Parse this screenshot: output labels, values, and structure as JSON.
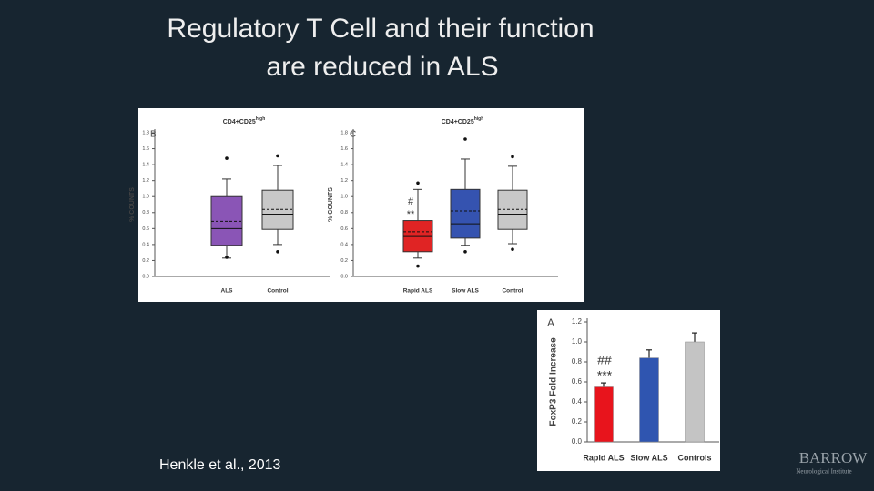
{
  "slide": {
    "title_line1": "Regulatory T Cell and their function",
    "title_line2": "are reduced in ALS",
    "citation": "Henkle et al., 2013",
    "logo": "BARROW",
    "logo_sub": "Neurological Institute"
  },
  "chart_data": [
    {
      "type": "box",
      "panel": "B",
      "title": "CD4+CD25",
      "title_sup": "high",
      "y_label": "% COUNTS",
      "ylim": [
        0,
        1.8
      ],
      "yticks": [
        {
          "value": 0,
          "label": "0.0"
        },
        0.2,
        0.4,
        0.6,
        0.8,
        {
          "value": 1,
          "label": "1.0"
        },
        1.2,
        1.4,
        1.6,
        1.8
      ],
      "categories": [
        "ALS",
        "Control"
      ],
      "boxes": [
        {
          "color": "#8a55b6",
          "low": 0.23,
          "q1": 0.39,
          "median": 0.6,
          "q3": 1.0,
          "high": 1.22,
          "mean": 0.69,
          "outliers": [
            1.48,
            0.24
          ]
        },
        {
          "color": "#c8c8c8",
          "low": 0.4,
          "q1": 0.59,
          "median": 0.78,
          "q3": 1.08,
          "high": 1.39,
          "mean": 0.84,
          "outliers": [
            1.51,
            0.31
          ]
        }
      ]
    },
    {
      "type": "box",
      "panel": "C",
      "title": "CD4+CD25",
      "title_sup": "high",
      "y_label": "% COUNTS",
      "ylim": [
        0,
        1.8
      ],
      "yticks": [
        {
          "value": 0,
          "label": "0.0"
        },
        0.2,
        0.4,
        0.6,
        0.8,
        {
          "value": 1,
          "label": "1.0"
        },
        1.2,
        1.4,
        1.6,
        1.8
      ],
      "categories": [
        "Rapid ALS",
        "Slow ALS",
        "Control"
      ],
      "boxes": [
        {
          "color": "#e02424",
          "low": 0.23,
          "q1": 0.31,
          "median": 0.5,
          "q3": 0.7,
          "high": 1.09,
          "mean": 0.56,
          "outliers": [
            1.17,
            0.13
          ]
        },
        {
          "color": "#3553b0",
          "low": 0.39,
          "q1": 0.48,
          "median": 0.66,
          "q3": 1.09,
          "high": 1.47,
          "mean": 0.82,
          "outliers": [
            1.72,
            0.31
          ]
        },
        {
          "color": "#c8c8c8",
          "low": 0.41,
          "q1": 0.59,
          "median": 0.78,
          "q3": 1.08,
          "high": 1.38,
          "mean": 0.84,
          "outliers": [
            1.5,
            0.34
          ]
        }
      ],
      "annotations": [
        "#",
        "**"
      ]
    },
    {
      "type": "bar",
      "panel": "A",
      "y_label": "FoxP3 Fold Increase",
      "ylim": [
        0,
        1.2
      ],
      "yticks": [
        {
          "value": 0,
          "label": "0.0"
        },
        0.2,
        0.4,
        0.6,
        0.8,
        {
          "value": 1,
          "label": "1.0"
        },
        1.2
      ],
      "categories": [
        "Rapid ALS",
        "Slow ALS",
        "Controls"
      ],
      "values": [
        0.55,
        0.84,
        1.0
      ],
      "errors": [
        0.04,
        0.08,
        0.09
      ],
      "colors": [
        "#e8141c",
        "#2f55b0",
        "#c4c4c4"
      ],
      "annotations": [
        "##",
        "***"
      ]
    }
  ]
}
